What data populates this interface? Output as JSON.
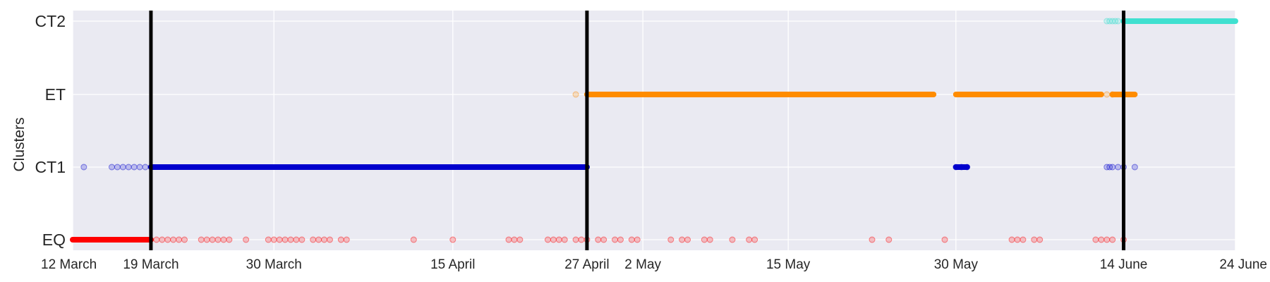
{
  "chart_data": {
    "type": "scatter",
    "title": "",
    "xlabel": "",
    "ylabel": "Clusters",
    "y_categories": [
      "EQ",
      "CT1",
      "ET",
      "CT2"
    ],
    "x_range": [
      "2020-03-12",
      "2020-06-24"
    ],
    "x_ticks": [
      {
        "date": "2020-03-12",
        "label": "12 March"
      },
      {
        "date": "2020-03-19",
        "label": "19 March"
      },
      {
        "date": "2020-03-30",
        "label": "30 March"
      },
      {
        "date": "2020-04-15",
        "label": "15 April"
      },
      {
        "date": "2020-04-27",
        "label": "27 April"
      },
      {
        "date": "2020-05-02",
        "label": "2 May"
      },
      {
        "date": "2020-05-15",
        "label": "15 May"
      },
      {
        "date": "2020-05-30",
        "label": "30 May"
      },
      {
        "date": "2020-06-14",
        "label": "14 June"
      },
      {
        "date": "2020-06-24",
        "label": "24 June"
      }
    ],
    "regime_changes": [
      "2020-03-19",
      "2020-04-27",
      "2020-06-14"
    ],
    "grid": true,
    "background": "#eaeaf2",
    "series": [
      {
        "category": "EQ",
        "color": "#ff0000",
        "dense_segments": [
          {
            "start": "2020-03-12",
            "end": "2020-03-19"
          }
        ],
        "points": [
          "2020-03-19T12:00",
          "2020-03-20T00:00",
          "2020-03-20T12:00",
          "2020-03-21T00:00",
          "2020-03-21T12:00",
          "2020-03-22T00:00",
          "2020-03-23T12:00",
          "2020-03-24T00:00",
          "2020-03-24T12:00",
          "2020-03-25T00:00",
          "2020-03-25T12:00",
          "2020-03-26T00:00",
          "2020-03-27T12:00",
          "2020-03-29T12:00",
          "2020-03-30T00:00",
          "2020-03-30T12:00",
          "2020-03-31T00:00",
          "2020-03-31T12:00",
          "2020-04-01T00:00",
          "2020-04-01T12:00",
          "2020-04-02T12:00",
          "2020-04-03T00:00",
          "2020-04-03T12:00",
          "2020-04-04T00:00",
          "2020-04-05T00:00",
          "2020-04-05T12:00",
          "2020-04-11T12:00",
          "2020-04-15T00:00",
          "2020-04-20T00:00",
          "2020-04-20T12:00",
          "2020-04-21T00:00",
          "2020-04-23T12:00",
          "2020-04-24T00:00",
          "2020-04-24T12:00",
          "2020-04-25T00:00",
          "2020-04-26T00:00",
          "2020-04-26T12:00",
          "2020-04-27T00:00",
          "2020-04-28T00:00",
          "2020-04-28T12:00",
          "2020-04-29T12:00",
          "2020-04-30T00:00",
          "2020-05-01T00:00",
          "2020-05-01T12:00",
          "2020-05-04T12:00",
          "2020-05-05T12:00",
          "2020-05-06T00:00",
          "2020-05-07T12:00",
          "2020-05-08T00:00",
          "2020-05-10T00:00",
          "2020-05-11T12:00",
          "2020-05-12T00:00",
          "2020-05-22T12:00",
          "2020-05-24T00:00",
          "2020-05-29T00:00",
          "2020-06-04T00:00",
          "2020-06-04T12:00",
          "2020-06-05T00:00",
          "2020-06-06T00:00",
          "2020-06-06T12:00",
          "2020-06-11T12:00",
          "2020-06-12T00:00",
          "2020-06-12T12:00",
          "2020-06-13T00:00",
          "2020-06-14T00:00"
        ]
      },
      {
        "category": "CT1",
        "color": "#0000cd",
        "dense_segments": [
          {
            "start": "2020-03-19",
            "end": "2020-04-27"
          },
          {
            "start": "2020-05-30",
            "end": "2020-05-31"
          }
        ],
        "points": [
          "2020-03-13T00:00",
          "2020-03-15T12:00",
          "2020-03-16T00:00",
          "2020-03-16T12:00",
          "2020-03-17T00:00",
          "2020-03-17T12:00",
          "2020-03-18T00:00",
          "2020-03-18T12:00",
          "2020-03-19T00:00",
          "2020-05-30T00:00",
          "2020-05-30T12:00",
          "2020-05-31T00:00",
          "2020-06-12T12:00",
          "2020-06-12T18:00",
          "2020-06-13T00:00",
          "2020-06-13T12:00",
          "2020-06-14T00:00",
          "2020-06-15T00:00"
        ]
      },
      {
        "category": "ET",
        "color": "#ff8c00",
        "dense_segments": [
          {
            "start": "2020-04-27",
            "end": "2020-05-28"
          },
          {
            "start": "2020-05-30",
            "end": "2020-06-12"
          },
          {
            "start": "2020-06-13",
            "end": "2020-06-15"
          }
        ],
        "points": [
          "2020-04-26T00:00",
          "2020-06-12T12:00",
          "2020-06-13T00:00",
          "2020-06-14T00:00"
        ]
      },
      {
        "category": "CT2",
        "color": "#40e0d0",
        "dense_segments": [
          {
            "start": "2020-06-14",
            "end": "2020-06-24"
          }
        ],
        "points": [
          "2020-06-12T12:00",
          "2020-06-12T18:00",
          "2020-06-13T00:00",
          "2020-06-13T06:00",
          "2020-06-13T12:00",
          "2020-06-14T00:00"
        ]
      }
    ]
  }
}
